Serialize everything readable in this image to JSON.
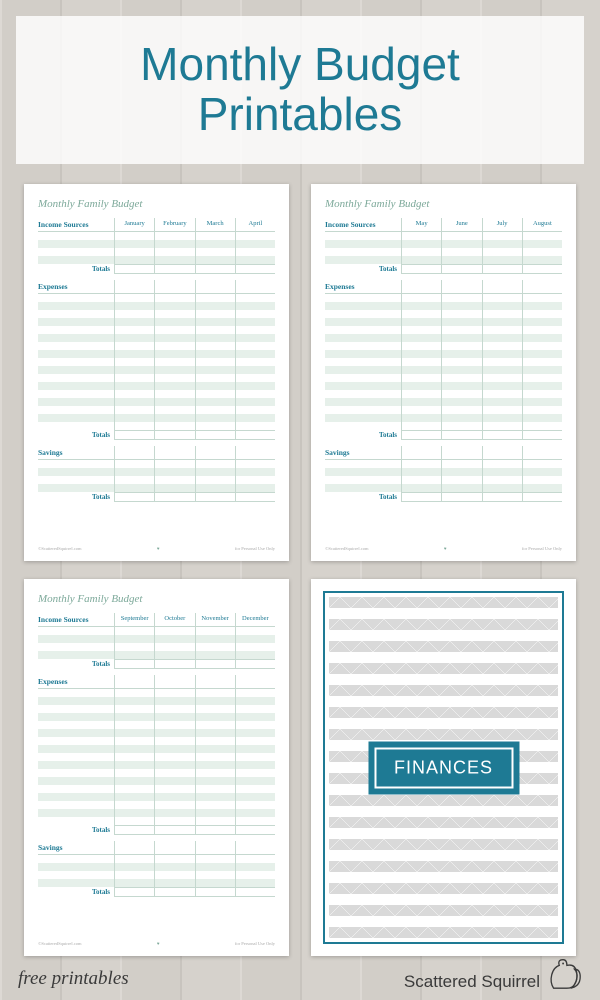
{
  "title_line1": "Monthly Budget",
  "title_line2": "Printables",
  "colors": {
    "accent": "#1e7a94",
    "stripe": "#e6f0ea",
    "muted_green": "#7da99a",
    "background": "#d4d0cb"
  },
  "budget_page": {
    "title": "Monthly Family Budget",
    "sections": {
      "income": {
        "label": "Income Sources",
        "rows": 4
      },
      "expenses": {
        "label": "Expenses",
        "rows": 17
      },
      "savings": {
        "label": "Savings",
        "rows": 4
      }
    },
    "totals_label": "Totals",
    "footer_left": "©ScatteredSquirrel.com",
    "footer_right": "for Personal Use Only"
  },
  "pages": [
    {
      "months": [
        "January",
        "February",
        "March",
        "April"
      ]
    },
    {
      "months": [
        "May",
        "June",
        "July",
        "August"
      ]
    },
    {
      "months": [
        "September",
        "October",
        "November",
        "December"
      ]
    }
  ],
  "cover": {
    "label": "FINANCES"
  },
  "footer": {
    "left": "free printables",
    "brand": "Scattered Squirrel"
  }
}
